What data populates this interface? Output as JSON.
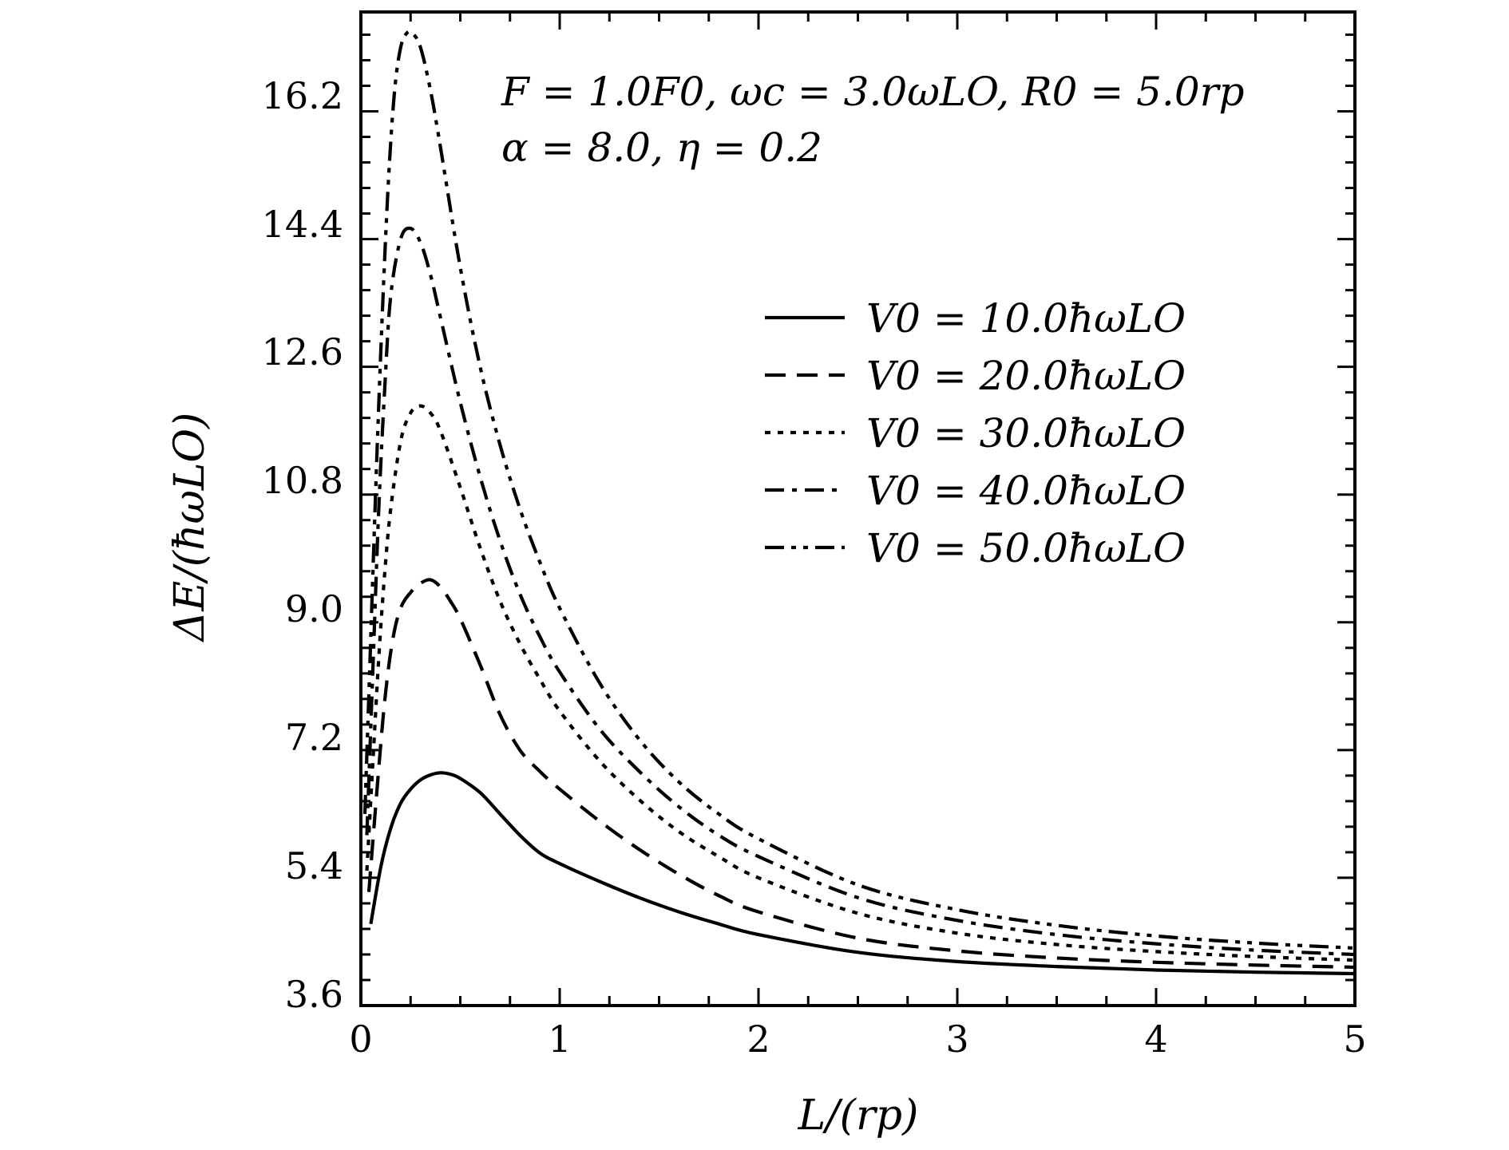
{
  "chart_data": {
    "type": "line",
    "xlabel": "L/(rp)",
    "ylabel": "ΔE/(ħωLO)",
    "xlim": [
      0,
      5
    ],
    "ylim": [
      3.6,
      17.6
    ],
    "xticks": [
      "0",
      "1",
      "2",
      "3",
      "4",
      "5"
    ],
    "yticks": [
      "3.6",
      "5.4",
      "7.2",
      "9.0",
      "10.8",
      "12.6",
      "14.4",
      "16.2"
    ],
    "grid": false,
    "legend_position": "upper-right",
    "annotation": {
      "line1": "F = 1.0F0, ωc = 3.0ωLO, R0 = 5.0rp",
      "line2": "α = 8.0, η = 0.2"
    },
    "series": [
      {
        "name": "V0 = 10.0ħωLO",
        "style": "solid",
        "x": [
          0.05,
          0.1,
          0.15,
          0.2,
          0.25,
          0.3,
          0.35,
          0.4,
          0.45,
          0.5,
          0.6,
          0.7,
          0.8,
          0.9,
          1.0,
          1.2,
          1.4,
          1.6,
          1.8,
          2.0,
          2.5,
          3.0,
          3.5,
          4.0,
          4.5,
          5.0
        ],
        "y": [
          4.75,
          5.55,
          6.1,
          6.45,
          6.65,
          6.78,
          6.85,
          6.88,
          6.86,
          6.8,
          6.6,
          6.3,
          6.0,
          5.75,
          5.6,
          5.35,
          5.12,
          4.92,
          4.75,
          4.6,
          4.35,
          4.22,
          4.15,
          4.1,
          4.07,
          4.05
        ]
      },
      {
        "name": "V0 = 20.0ħωLO",
        "style": "dashed",
        "x": [
          0.04,
          0.08,
          0.12,
          0.16,
          0.2,
          0.25,
          0.3,
          0.35,
          0.4,
          0.45,
          0.5,
          0.6,
          0.7,
          0.8,
          0.9,
          1.0,
          1.2,
          1.4,
          1.6,
          1.8,
          2.0,
          2.5,
          3.0,
          3.5,
          4.0,
          4.5,
          5.0
        ],
        "y": [
          5.2,
          6.6,
          7.9,
          8.75,
          9.2,
          9.42,
          9.55,
          9.6,
          9.5,
          9.3,
          9.05,
          8.4,
          7.7,
          7.2,
          6.9,
          6.65,
          6.2,
          5.8,
          5.45,
          5.15,
          4.92,
          4.55,
          4.37,
          4.27,
          4.21,
          4.17,
          4.14
        ]
      },
      {
        "name": "V0 = 30.0ħωLO",
        "style": "dotted",
        "x": [
          0.03,
          0.06,
          0.09,
          0.12,
          0.15,
          0.2,
          0.25,
          0.3,
          0.35,
          0.4,
          0.5,
          0.6,
          0.7,
          0.8,
          0.9,
          1.0,
          1.2,
          1.4,
          1.6,
          1.8,
          2.0,
          2.5,
          3.0,
          3.5,
          4.0,
          4.5,
          5.0
        ],
        "y": [
          5.5,
          7.0,
          8.5,
          9.7,
          10.6,
          11.55,
          11.95,
          12.05,
          11.95,
          11.7,
          10.9,
          10.05,
          9.3,
          8.7,
          8.2,
          7.75,
          7.05,
          6.5,
          6.05,
          5.7,
          5.4,
          4.9,
          4.62,
          4.46,
          4.36,
          4.29,
          4.24
        ]
      },
      {
        "name": "V0 = 40.0ħωLO",
        "style": "dashdot",
        "x": [
          0.03,
          0.06,
          0.09,
          0.12,
          0.15,
          0.2,
          0.25,
          0.3,
          0.35,
          0.4,
          0.5,
          0.6,
          0.7,
          0.8,
          0.9,
          1.0,
          1.2,
          1.4,
          1.6,
          1.8,
          2.0,
          2.5,
          3.0,
          3.5,
          4.0,
          4.5,
          5.0
        ],
        "y": [
          6.0,
          8.3,
          10.6,
          12.3,
          13.6,
          14.4,
          14.55,
          14.35,
          13.9,
          13.3,
          12.1,
          11.05,
          10.15,
          9.4,
          8.8,
          8.3,
          7.5,
          6.9,
          6.4,
          6.0,
          5.7,
          5.12,
          4.8,
          4.6,
          4.47,
          4.38,
          4.32
        ]
      },
      {
        "name": "V0 = 50.0ħωLO",
        "style": "dashdotdot",
        "x": [
          0.02,
          0.05,
          0.08,
          0.11,
          0.14,
          0.17,
          0.2,
          0.23,
          0.26,
          0.3,
          0.35,
          0.4,
          0.5,
          0.6,
          0.7,
          0.8,
          0.9,
          1.0,
          1.2,
          1.4,
          1.6,
          1.8,
          2.0,
          2.5,
          3.0,
          3.5,
          4.0,
          4.5,
          5.0
        ],
        "y": [
          6.3,
          8.8,
          11.3,
          13.5,
          15.3,
          16.5,
          17.1,
          17.3,
          17.3,
          17.1,
          16.5,
          15.7,
          14.0,
          12.6,
          11.5,
          10.6,
          9.85,
          9.2,
          8.15,
          7.35,
          6.75,
          6.3,
          5.95,
          5.3,
          4.95,
          4.73,
          4.58,
          4.48,
          4.41
        ]
      }
    ]
  }
}
